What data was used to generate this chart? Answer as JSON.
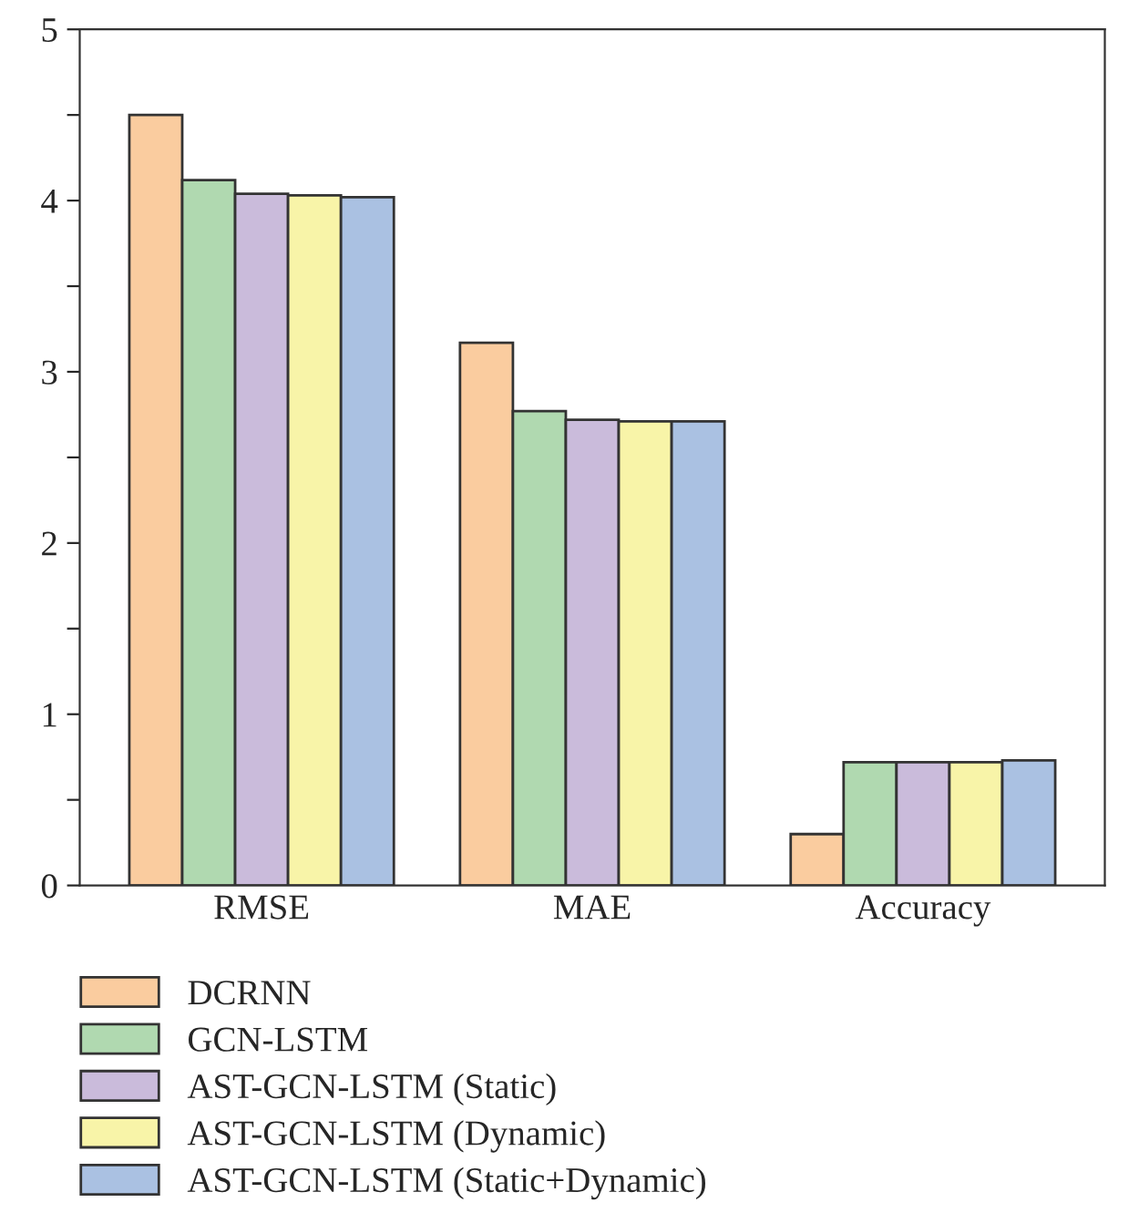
{
  "chart_data": {
    "type": "bar",
    "categories": [
      "RMSE",
      "MAE",
      "Accuracy"
    ],
    "series": [
      {
        "name": "DCRNN",
        "color": "#facc9f",
        "values": [
          4.5,
          3.17,
          0.3
        ]
      },
      {
        "name": "GCN-LSTM",
        "color": "#b0d9b0",
        "values": [
          4.12,
          2.77,
          0.72
        ]
      },
      {
        "name": "AST-GCN-LSTM (Static)",
        "color": "#cabbdb",
        "values": [
          4.04,
          2.72,
          0.72
        ]
      },
      {
        "name": "AST-GCN-LSTM (Dynamic)",
        "color": "#f8f4a8",
        "values": [
          4.03,
          2.71,
          0.72
        ]
      },
      {
        "name": "AST-GCN-LSTM (Static+Dynamic)",
        "color": "#aac1e2",
        "values": [
          4.02,
          2.71,
          0.73
        ]
      }
    ],
    "ylim": [
      0,
      5
    ],
    "yticks": [
      0,
      {
        "value": 0.5,
        "label": null
      },
      1,
      {
        "value": 1.5,
        "label": null
      },
      2,
      {
        "value": 2.5,
        "label": null
      },
      3,
      {
        "value": 3.5,
        "label": null
      },
      4,
      {
        "value": 4.5,
        "label": null
      },
      5
    ],
    "legend": "bottom left",
    "grid": false
  }
}
